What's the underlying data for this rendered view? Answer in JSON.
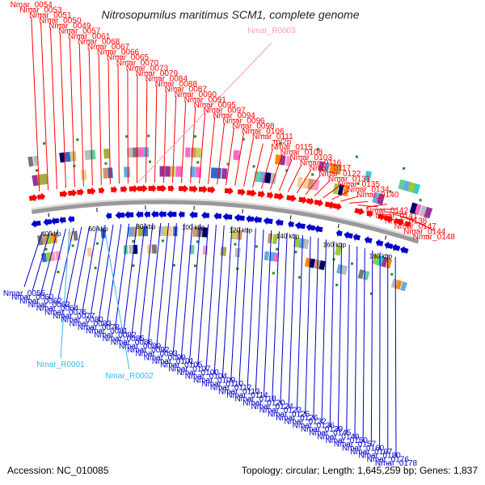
{
  "title": "Nitrosopumilus maritimus SCM1, complete genome",
  "footer": {
    "accession": "Accession: NC_010085",
    "summary": "Topology: circular; Length: 1,645,259 bp; Genes: 1,837"
  },
  "colors": {
    "forward": "#ff0000",
    "reverse": "#0000cc",
    "rna_forward": "#ff99cc",
    "rna_reverse": "#33bbee",
    "backbone": "#999999",
    "cog_marker": "#228b22"
  },
  "ticks": [
    "40 kbp",
    "60 kbp",
    "80 kbp",
    "100 kbp",
    "120 kbp",
    "140 kbp",
    "160 kbp",
    "180 kbp"
  ],
  "forward_labels": [
    "Nmar_0054",
    "Nmar_0053",
    "Nmar_0051",
    "Nmar_0050",
    "Nmar_0049",
    "Nmar_0057",
    "Nmar_0061",
    "Nmar_0068",
    "Nmar_0067",
    "Nmar_0066",
    "Nmar_0065",
    "Nmar_0070",
    "Nmar_0073",
    "Nmar_0079",
    "Nmar_0084",
    "Nmar_0088",
    "Nmar_0087",
    "Nmar_0090",
    "Nmar_0091",
    "Nmar_0095",
    "Nmar_0097",
    "Nmar_0094",
    "Nmar_0096",
    "Nmar_0098",
    "Nmar_0106",
    "Nmar_0111",
    "rpl2p",
    "Nmar_0115",
    "Nmar_0108",
    "Nmar_0103",
    "Nmar_0116",
    "Nmar_0117",
    "Nmar_0122",
    "Nmar_0131",
    "Nmar_0135",
    "Nmar_0134",
    "Nmar_0140",
    "Nmar_0142",
    "Nmar_0141",
    "Nmar_0138",
    "Nmar_0147",
    "Nmar_0144",
    "Nmar_0148"
  ],
  "forward_rna_labels": [
    "Nmar_R0003"
  ],
  "reverse_labels": [
    "Nmar_0055",
    "Nmar_0060",
    "Nmar_0062",
    "Nmar_0063",
    "Nmar_0064",
    "Nmar_0076",
    "Nmar_0077",
    "Nmar_0080",
    "Nmar_0083",
    "Nmar_0078",
    "Nmar_0081",
    "Nmar_0082",
    "Nmar_0085",
    "Nmar_0086",
    "Nmar_0089",
    "Nmar_0092",
    "Nmar_0093",
    "Nmar_0099",
    "Nmar_0101",
    "Nmar_0105",
    "Nmar_0107",
    "Nmar_0100",
    "Nmar_0104",
    "Nmar_0109",
    "Nmar_0110",
    "Nmar_0112",
    "Nmar_0113",
    "Nmar_0114",
    "Nmar_0118",
    "Nmar_0120",
    "Nmar_0124",
    "Nmar_0123",
    "Nmar_0125",
    "Nmar_0126",
    "Nmar_0132",
    "Nmar_0136",
    "Nmar_0139",
    "Nmar_0145",
    "Nmar_0149",
    "Nmar_0150",
    "Nmar_0157",
    "Nmar_0160",
    "Nmar_0167",
    "Nmar_0180",
    "Nmar_0176",
    "Nmar_0178"
  ],
  "reverse_rna_labels": [
    "Nmar_R0001",
    "Nmar_R0002"
  ]
}
